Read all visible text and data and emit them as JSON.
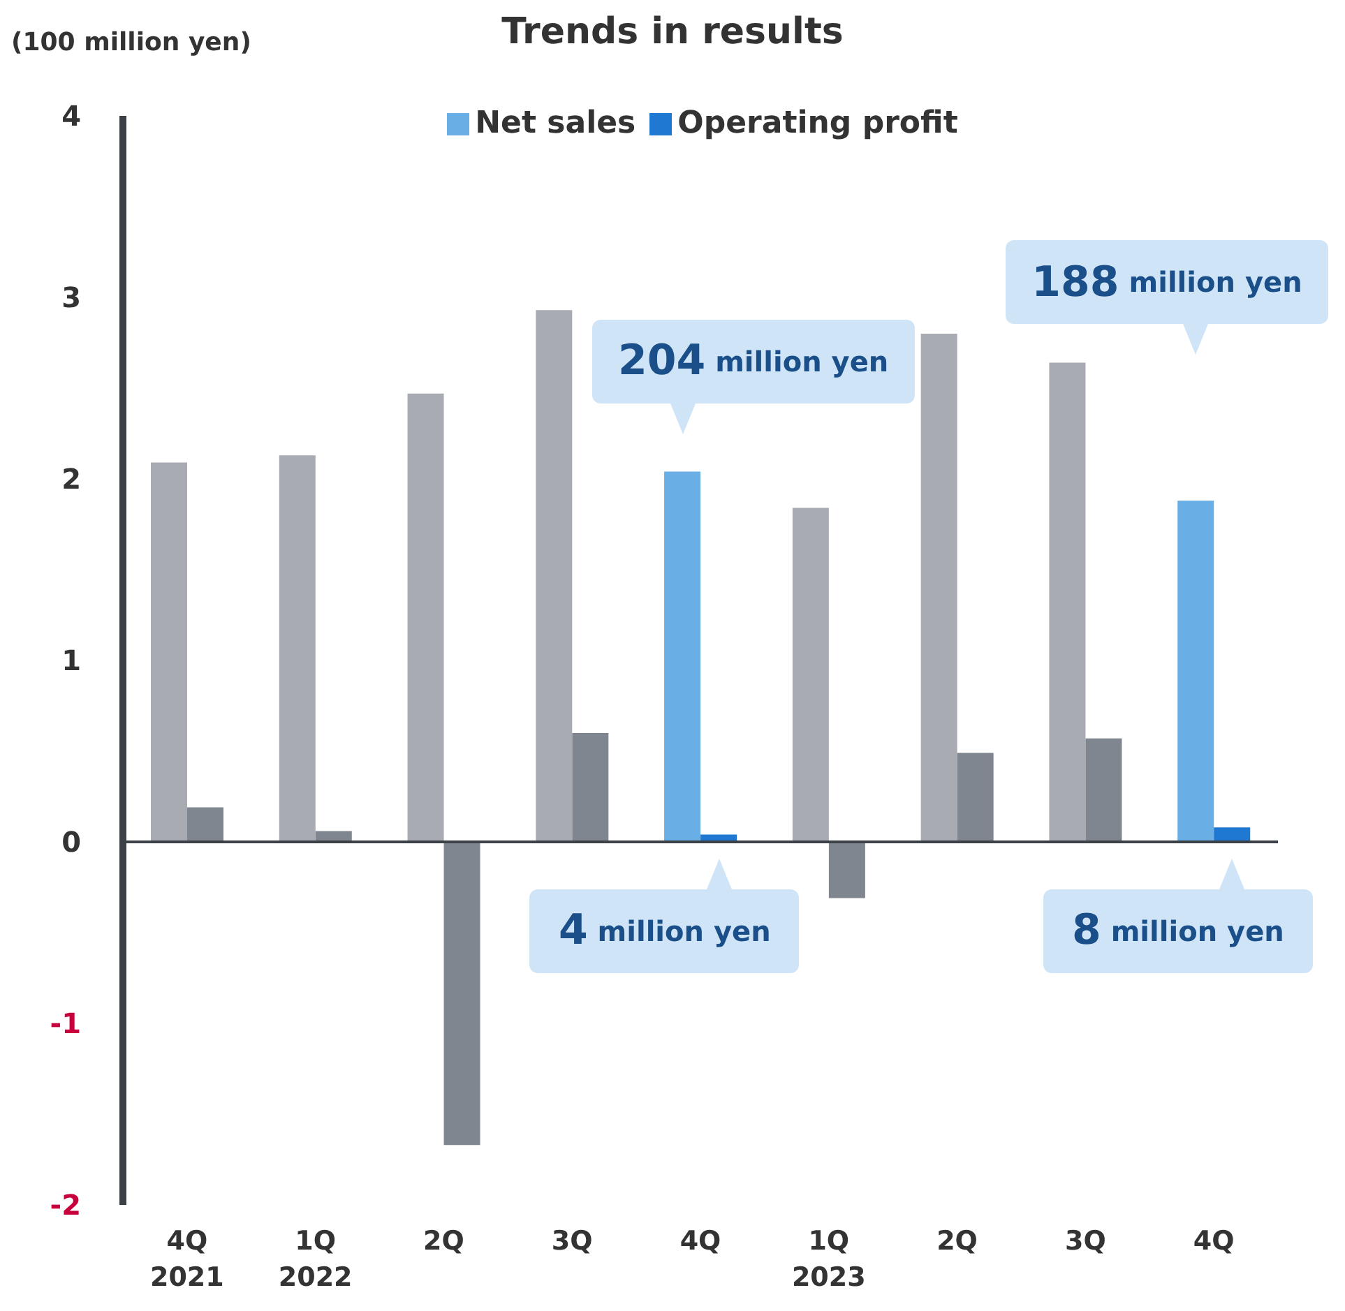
{
  "chart_data": {
    "type": "bar",
    "title": "Trends in results",
    "ylabel": "(100 million yen)",
    "categories": [
      "4Q\n2021",
      "1Q\n2022",
      "2Q",
      "3Q",
      "4Q",
      "1Q\n2023",
      "2Q",
      "3Q",
      "4Q"
    ],
    "series": [
      {
        "name": "Net sales",
        "color": "#6aaee6",
        "colors": [
          "#a9abb3",
          "#a9abb3",
          "#a9abb3",
          "#a9abb3",
          "#6aaee6",
          "#a9abb3",
          "#a9abb3",
          "#a9abb3",
          "#6aaee6"
        ],
        "values": [
          2.09,
          2.13,
          2.47,
          2.93,
          2.04,
          1.84,
          2.8,
          2.64,
          1.88
        ]
      },
      {
        "name": "Operating profit",
        "color": "#1f78d1",
        "colors": [
          "#80868f",
          "#80868f",
          "#80868f",
          "#80868f",
          "#1f78d1",
          "#80868f",
          "#80868f",
          "#80868f",
          "#1f78d1"
        ],
        "values": [
          0.19,
          0.06,
          -1.67,
          0.6,
          0.04,
          -0.31,
          0.49,
          0.57,
          0.08
        ]
      }
    ],
    "ylim": [
      -2,
      4
    ],
    "yticks": [
      -2,
      -1,
      0,
      1,
      2,
      3,
      4
    ],
    "grid": false,
    "legend": "top",
    "ref_lines": [
      {
        "axis": "y",
        "value": 0,
        "color": "#3c4047"
      }
    ],
    "annotations": [
      {
        "text": "204 million yen",
        "x": "4Q",
        "y": 2.04
      },
      {
        "text": "4 million yen",
        "x": "4Q",
        "y": 0.04
      },
      "188 million yen",
      "8 million yen"
    ]
  }
}
